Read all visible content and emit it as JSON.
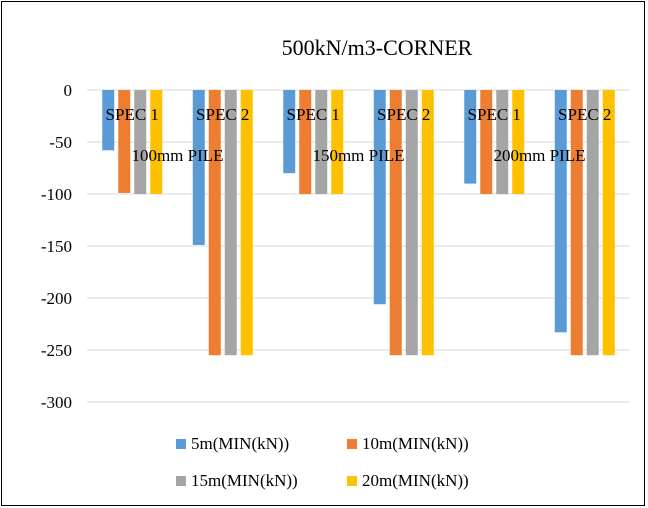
{
  "chart_data": {
    "type": "bar",
    "title": "500kN/m3-CORNER",
    "xlabel": "",
    "ylabel": "",
    "ylim": [
      -300,
      0
    ],
    "yticks": [
      0,
      -50,
      -100,
      -150,
      -200,
      -250,
      -300
    ],
    "grid": true,
    "legend_position": "bottom",
    "groups": [
      {
        "label": "100mm PILE",
        "categories": [
          "SPEC 1",
          "SPEC 2"
        ]
      },
      {
        "label": "150mm PILE",
        "categories": [
          "SPEC 1",
          "SPEC 2"
        ]
      },
      {
        "label": "200mm PILE",
        "categories": [
          "SPEC 1",
          "SPEC 2"
        ]
      }
    ],
    "series": [
      {
        "name": "5m(MIN(kN))",
        "color": "#5B9BD5",
        "values": [
          -58,
          -149,
          -80,
          -206,
          -90,
          -233
        ]
      },
      {
        "name": "10m(MIN(kN))",
        "color": "#ED7D31",
        "values": [
          -99,
          -255,
          -100,
          -255,
          -100,
          -255
        ]
      },
      {
        "name": "15m(MIN(kN))",
        "color": "#A5A5A5",
        "values": [
          -100,
          -255,
          -100,
          -255,
          -100,
          -255
        ]
      },
      {
        "name": "20m(MIN(kN))",
        "color": "#FFC000",
        "values": [
          -100,
          -255,
          -100,
          -255,
          -100,
          -255
        ]
      }
    ]
  }
}
